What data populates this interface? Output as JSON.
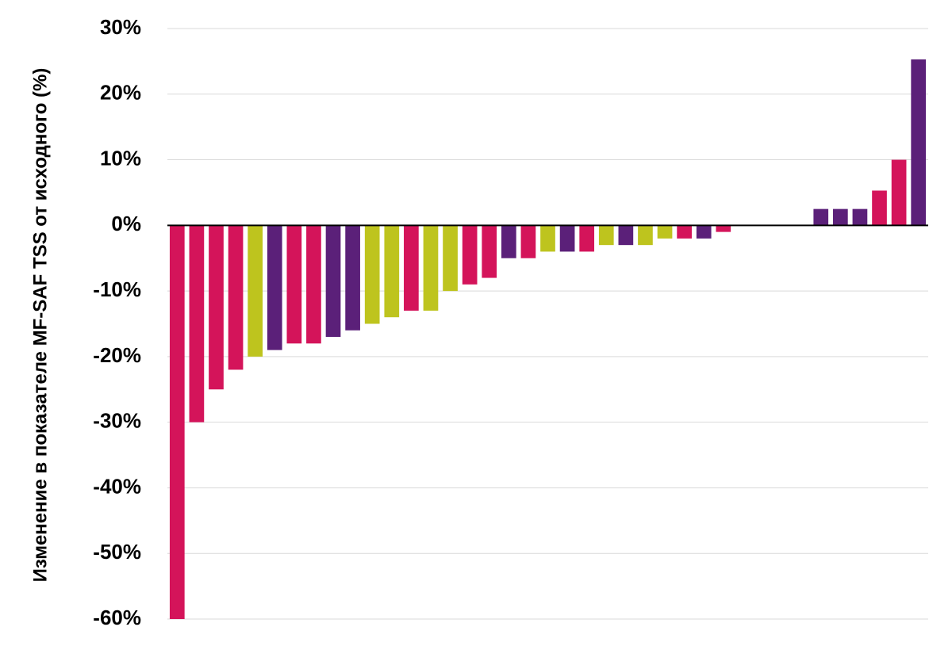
{
  "chart_data": {
    "type": "bar",
    "title": "",
    "xlabel": "",
    "ylabel": "Изменение в показателе MF-SAF TSS от исходного (%)",
    "ylim": [
      -60,
      30
    ],
    "yticks": [
      30,
      20,
      10,
      0,
      -10,
      -20,
      -30,
      -40,
      -50,
      -60
    ],
    "ytick_labels": [
      "30%",
      "20%",
      "10%",
      "0%",
      "-10%",
      "-20%",
      "-30%",
      "-40%",
      "-50%",
      "-60%"
    ],
    "grid": true,
    "legend": "none",
    "colors": {
      "magenta": "#d4145a",
      "olive": "#bec41e",
      "purple": "#5b2079"
    },
    "values": [
      -60,
      -30,
      -25,
      -22,
      -20,
      -19,
      -18,
      -18,
      -17,
      -16,
      -15,
      -14,
      -13,
      -13,
      -10,
      -9,
      -8,
      -5,
      -5,
      -4,
      -4,
      -4,
      -3,
      -3,
      -3,
      -2,
      -2,
      -2,
      -1,
      0,
      0,
      0,
      0,
      2.5,
      2.5,
      2.5,
      5.3,
      10,
      25.3
    ],
    "bar_colors": [
      "magenta",
      "magenta",
      "magenta",
      "magenta",
      "olive",
      "purple",
      "magenta",
      "magenta",
      "purple",
      "purple",
      "olive",
      "olive",
      "magenta",
      "olive",
      "olive",
      "magenta",
      "magenta",
      "purple",
      "magenta",
      "olive",
      "purple",
      "magenta",
      "olive",
      "purple",
      "olive",
      "olive",
      "magenta",
      "purple",
      "magenta",
      "none",
      "none",
      "none",
      "none",
      "purple",
      "purple",
      "purple",
      "magenta",
      "magenta",
      "purple"
    ]
  }
}
